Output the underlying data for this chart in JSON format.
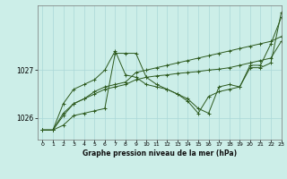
{
  "xlabel": "Graphe pression niveau de la mer (hPa)",
  "bg_color": "#cceee8",
  "grid_color": "#aad8d8",
  "line_color": "#2d5a1e",
  "ylim": [
    1025.55,
    1028.35
  ],
  "xlim": [
    -0.5,
    23
  ],
  "yticks": [
    1026,
    1027
  ],
  "xticks": [
    0,
    1,
    2,
    3,
    4,
    5,
    6,
    7,
    8,
    9,
    10,
    11,
    12,
    13,
    14,
    15,
    16,
    17,
    18,
    19,
    20,
    21,
    22,
    23
  ],
  "series": [
    [
      1025.75,
      1025.75,
      1025.85,
      1026.05,
      1026.1,
      1026.15,
      1026.2,
      1027.35,
      1027.35,
      1027.35,
      1026.85,
      1026.7,
      1026.6,
      1026.5,
      1026.35,
      1026.1,
      1026.45,
      1026.55,
      1026.6,
      1026.65,
      1027.05,
      1027.05,
      1027.15,
      1028.2
    ],
    [
      1025.75,
      1025.75,
      1026.05,
      1026.3,
      1026.4,
      1026.55,
      1026.65,
      1026.7,
      1026.75,
      1026.95,
      1027.0,
      1027.05,
      1027.1,
      1027.15,
      1027.2,
      1027.25,
      1027.3,
      1027.35,
      1027.4,
      1027.45,
      1027.5,
      1027.55,
      1027.6,
      1027.7
    ],
    [
      1025.75,
      1025.75,
      1026.1,
      1026.3,
      1026.4,
      1026.5,
      1026.6,
      1026.65,
      1026.7,
      1026.8,
      1026.85,
      1026.88,
      1026.9,
      1026.93,
      1026.95,
      1026.97,
      1027.0,
      1027.02,
      1027.05,
      1027.1,
      1027.15,
      1027.2,
      1027.25,
      1027.6
    ],
    [
      1025.75,
      1025.75,
      1026.3,
      1026.6,
      1026.7,
      1026.8,
      1027.0,
      1027.4,
      1026.9,
      1026.85,
      1026.7,
      1026.65,
      1026.6,
      1026.5,
      1026.4,
      1026.2,
      1026.1,
      1026.65,
      1026.7,
      1026.65,
      1027.1,
      1027.1,
      1027.55,
      1028.1
    ]
  ]
}
